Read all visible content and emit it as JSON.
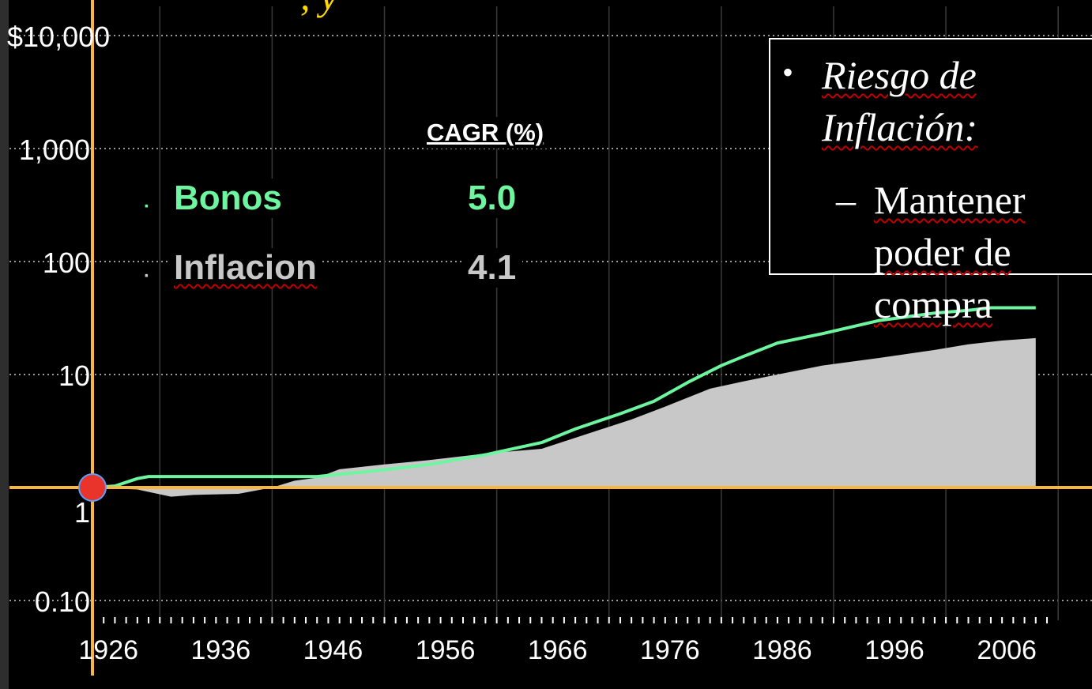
{
  "title_fragment": ", y",
  "chart_data": {
    "type": "area",
    "y_scale": "log",
    "ylim": [
      0.1,
      10000
    ],
    "y_ticks": [
      {
        "value": 10000,
        "label": "$10,000"
      },
      {
        "value": 1000,
        "label": "1,000"
      },
      {
        "value": 100,
        "label": "100"
      },
      {
        "value": 10,
        "label": "10"
      },
      {
        "value": 1,
        "label": "1"
      },
      {
        "value": 0.1,
        "label": "0.10"
      }
    ],
    "x_range": [
      1925,
      2010
    ],
    "x_ticks": [
      "1926",
      "1936",
      "1946",
      "1956",
      "1966",
      "1976",
      "1986",
      "1996",
      "2006"
    ],
    "grid": true,
    "legend_header": "CAGR (%)",
    "series": [
      {
        "name": "Bonos",
        "cagr": "5.0",
        "color": "#6ef5a0",
        "style": "line",
        "x": [
          1925,
          1927,
          1929,
          1930,
          1933,
          1936,
          1940,
          1945,
          1950,
          1955,
          1960,
          1965,
          1968,
          1972,
          1975,
          1978,
          1981,
          1983,
          1986,
          1990,
          1995,
          2000,
          2003,
          2005,
          2009
        ],
        "y": [
          1.0,
          1.03,
          1.2,
          1.25,
          1.25,
          1.25,
          1.25,
          1.25,
          1.4,
          1.6,
          1.95,
          2.5,
          3.3,
          4.5,
          5.8,
          8.5,
          12,
          14.5,
          19,
          23,
          30,
          35,
          37,
          39,
          39
        ]
      },
      {
        "name": "Inflacion",
        "cagr": "4.1",
        "color": "#c8c8c8",
        "style": "area",
        "x": [
          1925,
          1929,
          1932,
          1934,
          1938,
          1941,
          1943,
          1945,
          1947,
          1951,
          1955,
          1960,
          1965,
          1970,
          1973,
          1976,
          1980,
          1983,
          1986,
          1990,
          1995,
          2000,
          2003,
          2006,
          2009
        ],
        "y": [
          1.0,
          0.96,
          0.83,
          0.86,
          0.88,
          1.0,
          1.15,
          1.22,
          1.45,
          1.6,
          1.75,
          2.0,
          2.2,
          3.2,
          4.0,
          5.2,
          7.5,
          8.7,
          10,
          12,
          14,
          16.5,
          18.5,
          20,
          21
        ]
      }
    ]
  },
  "callout": {
    "bullet": "•",
    "line1": "Riesgo de",
    "line2": "Inflación:",
    "dash": "–",
    "sub1": "Mantener",
    "sub2": "poder de",
    "sub3": "compra"
  },
  "colors": {
    "axis": "#f5b642",
    "marker": "#e8342a",
    "bonos": "#6ef5a0",
    "inflacion": "#c8c8c8",
    "grid": "#9a9a9a"
  }
}
